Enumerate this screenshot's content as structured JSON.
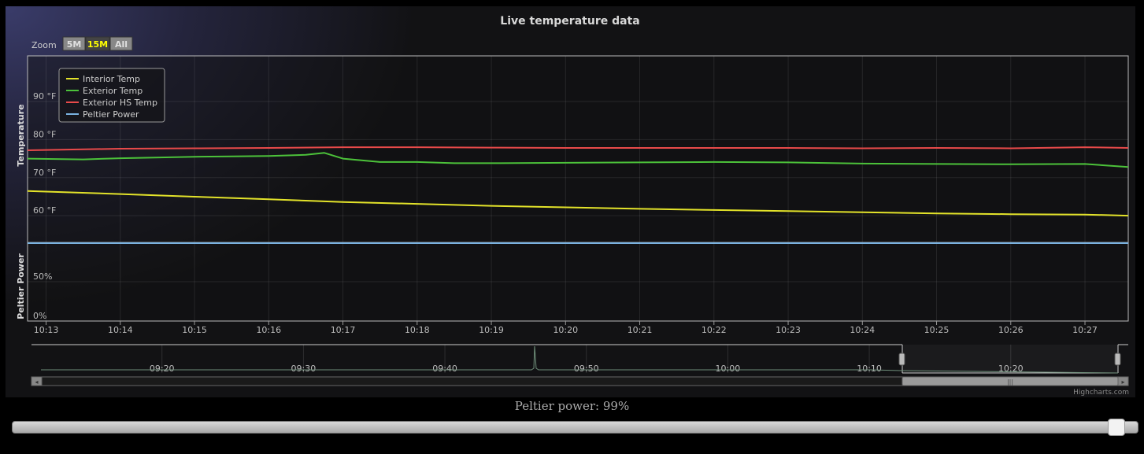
{
  "chart": {
    "title": "Live temperature data",
    "zoom_label": "Zoom",
    "zoom_buttons": [
      {
        "label": "5M",
        "selected": false
      },
      {
        "label": "15M",
        "selected": true
      },
      {
        "label": "All",
        "selected": false
      }
    ],
    "credits": "Highcharts.com"
  },
  "chart_data": {
    "type": "line",
    "title": "Live temperature data",
    "x_range": [
      "10:12:45",
      "10:27:35"
    ],
    "x_ticks": [
      "10:13",
      "10:14",
      "10:15",
      "10:16",
      "10:17",
      "10:18",
      "10:19",
      "10:20",
      "10:21",
      "10:22",
      "10:23",
      "10:24",
      "10:25",
      "10:26",
      "10:27"
    ],
    "legend_position": "top-left",
    "grid": true,
    "y_axes": [
      {
        "title": "Temperature",
        "ticks": [
          "60 °F",
          "70 °F",
          "80 °F",
          "90 °F"
        ],
        "range": [
          53,
          102
        ],
        "unit": "°F"
      },
      {
        "title": "Peltier Power",
        "ticks": [
          "0%",
          "50%"
        ],
        "range": [
          0,
          100
        ],
        "unit": "%"
      }
    ],
    "series": [
      {
        "name": "Interior Temp",
        "color": "#e3e32a",
        "axis": 0,
        "x": [
          "10:12:45",
          "10:14:00",
          "10:15:00",
          "10:16:00",
          "10:17:00",
          "10:18:00",
          "10:19:00",
          "10:20:00",
          "10:21:00",
          "10:22:00",
          "10:23:00",
          "10:24:00",
          "10:25:00",
          "10:26:00",
          "10:27:00",
          "10:27:35"
        ],
        "y": [
          66.5,
          65.7,
          65.0,
          64.3,
          63.6,
          63.1,
          62.6,
          62.2,
          61.8,
          61.5,
          61.2,
          60.9,
          60.6,
          60.4,
          60.3,
          60.0
        ]
      },
      {
        "name": "Exterior Temp",
        "color": "#4cc23a",
        "axis": 0,
        "x": [
          "10:12:45",
          "10:13:30",
          "10:14:00",
          "10:15:00",
          "10:15:30",
          "10:16:00",
          "10:16:30",
          "10:16:45",
          "10:17:00",
          "10:17:30",
          "10:18:00",
          "10:18:30",
          "10:19:00",
          "10:20:00",
          "10:21:00",
          "10:22:00",
          "10:23:00",
          "10:24:00",
          "10:25:00",
          "10:26:00",
          "10:27:00",
          "10:27:35"
        ],
        "y": [
          75.0,
          74.8,
          75.1,
          75.5,
          75.6,
          75.7,
          76.0,
          76.5,
          75.0,
          74.1,
          74.1,
          73.8,
          73.8,
          73.9,
          74.0,
          74.1,
          74.0,
          73.7,
          73.6,
          73.5,
          73.6,
          72.8
        ]
      },
      {
        "name": "Exterior HS Temp",
        "color": "#e84a4a",
        "axis": 0,
        "x": [
          "10:12:45",
          "10:14:00",
          "10:15:00",
          "10:16:00",
          "10:17:00",
          "10:18:00",
          "10:19:00",
          "10:20:00",
          "10:21:00",
          "10:22:00",
          "10:23:00",
          "10:24:00",
          "10:25:00",
          "10:26:00",
          "10:27:00",
          "10:27:35"
        ],
        "y": [
          77.2,
          77.6,
          77.7,
          77.8,
          78.0,
          78.0,
          77.9,
          77.8,
          77.8,
          77.8,
          77.8,
          77.7,
          77.8,
          77.7,
          78.0,
          77.8
        ]
      },
      {
        "name": "Peltier Power",
        "color": "#7ab2e0",
        "axis": 1,
        "x": [
          "10:12:45",
          "10:27:35"
        ],
        "y": [
          99,
          99
        ]
      }
    ],
    "navigator": {
      "ticks": [
        "09:20",
        "09:30",
        "09:40",
        "09:50",
        "10:00",
        "10:10",
        "10:20"
      ],
      "selected_range": [
        "10:12:45",
        "10:27:35"
      ]
    }
  },
  "peltier": {
    "label": "Peltier power: 99%",
    "value": 99
  }
}
